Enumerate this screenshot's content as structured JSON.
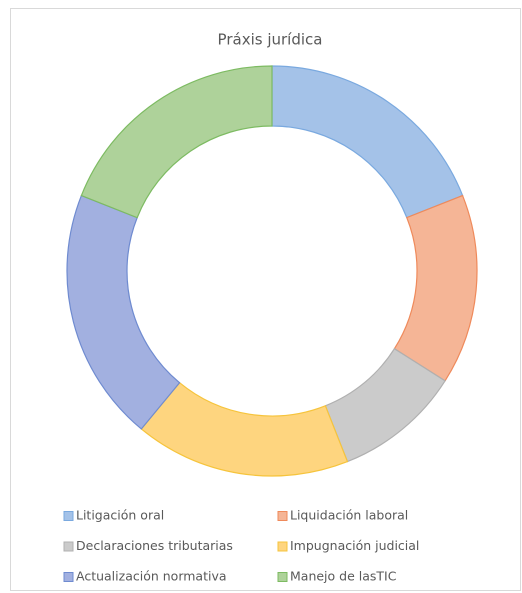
{
  "chart_data": {
    "type": "doughnut",
    "title": "Práxis jurídica",
    "categories": [
      "Litigación oral",
      "Liquidación laboral",
      "Declaraciones tributarias",
      "Impugnación judicial",
      "Actualización normativa",
      "Manejo de lasTIC"
    ],
    "values": [
      19,
      15,
      10,
      17,
      20,
      19
    ],
    "colors": [
      "#a4c2e8",
      "#f5b596",
      "#cbcbcb",
      "#fed57f",
      "#a2b0e0",
      "#aed29a"
    ],
    "edgecolors": [
      "#7aa9df",
      "#ef8a5b",
      "#b0b0b0",
      "#f6c43c",
      "#6f8bd0",
      "#7dbb62"
    ],
    "legend": "bottom"
  }
}
